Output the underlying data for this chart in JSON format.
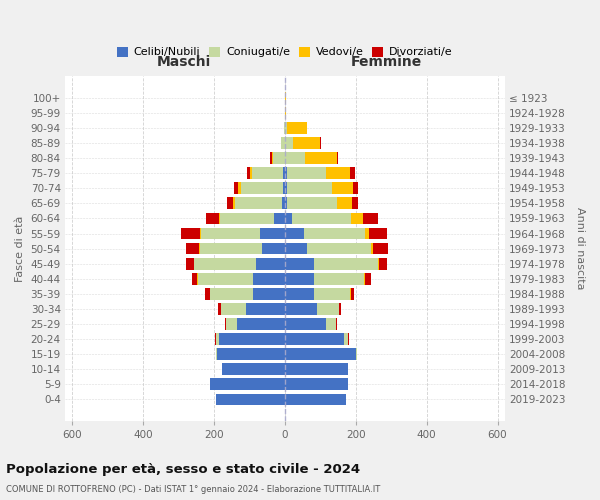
{
  "age_groups": [
    "100+",
    "95-99",
    "90-94",
    "85-89",
    "80-84",
    "75-79",
    "70-74",
    "65-69",
    "60-64",
    "55-59",
    "50-54",
    "45-49",
    "40-44",
    "35-39",
    "30-34",
    "25-29",
    "20-24",
    "15-19",
    "10-14",
    "5-9",
    "0-4"
  ],
  "birth_years": [
    "≤ 1923",
    "1924-1928",
    "1929-1933",
    "1934-1938",
    "1939-1943",
    "1944-1948",
    "1949-1953",
    "1954-1958",
    "1959-1963",
    "1964-1968",
    "1969-1973",
    "1974-1978",
    "1979-1983",
    "1984-1988",
    "1989-1993",
    "1994-1998",
    "1999-2003",
    "2004-2008",
    "2009-2013",
    "2014-2018",
    "2019-2023"
  ],
  "maschi": {
    "celibi": [
      0,
      0,
      0,
      0,
      0,
      5,
      5,
      8,
      30,
      70,
      65,
      80,
      90,
      90,
      110,
      135,
      185,
      190,
      178,
      210,
      193
    ],
    "coniugati": [
      0,
      0,
      3,
      10,
      32,
      88,
      118,
      132,
      152,
      165,
      175,
      175,
      155,
      120,
      70,
      30,
      10,
      3,
      0,
      0,
      0
    ],
    "vedovi": [
      0,
      0,
      0,
      2,
      5,
      5,
      8,
      5,
      5,
      3,
      2,
      2,
      2,
      2,
      0,
      0,
      0,
      0,
      0,
      0,
      0
    ],
    "divorziati": [
      0,
      0,
      0,
      0,
      5,
      10,
      12,
      18,
      35,
      55,
      38,
      22,
      16,
      12,
      8,
      3,
      2,
      0,
      0,
      0,
      0
    ]
  },
  "femmine": {
    "nubili": [
      0,
      0,
      0,
      0,
      0,
      5,
      5,
      5,
      20,
      55,
      62,
      82,
      82,
      82,
      92,
      115,
      168,
      202,
      178,
      178,
      172
    ],
    "coniugate": [
      0,
      0,
      5,
      22,
      58,
      112,
      128,
      142,
      168,
      172,
      182,
      182,
      142,
      102,
      62,
      28,
      10,
      2,
      0,
      0,
      0
    ],
    "vedove": [
      2,
      3,
      58,
      78,
      88,
      68,
      58,
      42,
      32,
      10,
      5,
      3,
      2,
      2,
      0,
      0,
      0,
      0,
      0,
      0,
      0
    ],
    "divorziate": [
      0,
      0,
      0,
      2,
      5,
      12,
      15,
      18,
      42,
      52,
      42,
      22,
      16,
      10,
      5,
      3,
      2,
      0,
      0,
      0,
      0
    ]
  },
  "colors": {
    "celibi": "#4472c4",
    "coniugati": "#c5d9a0",
    "vedovi": "#ffc000",
    "divorziati": "#cc0000"
  },
  "xlim": 620,
  "xtick_vals": [
    -600,
    -400,
    -200,
    0,
    200,
    400,
    600
  ],
  "title": "Popolazione per età, sesso e stato civile - 2024",
  "subtitle": "COMUNE DI ROTTOFRENO (PC) - Dati ISTAT 1° gennaio 2024 - Elaborazione TUTTITALIA.IT",
  "ylabel_left": "Fasce di età",
  "ylabel_right": "Anni di nascita",
  "xlabel_left": "Maschi",
  "xlabel_right": "Femmine",
  "bg_color": "#f0f0f0",
  "plot_bg": "#ffffff",
  "grid_color": "#cccccc",
  "legend_labels": [
    "Celibi/Nubili",
    "Coniugati/e",
    "Vedovi/e",
    "Divorziati/e"
  ]
}
